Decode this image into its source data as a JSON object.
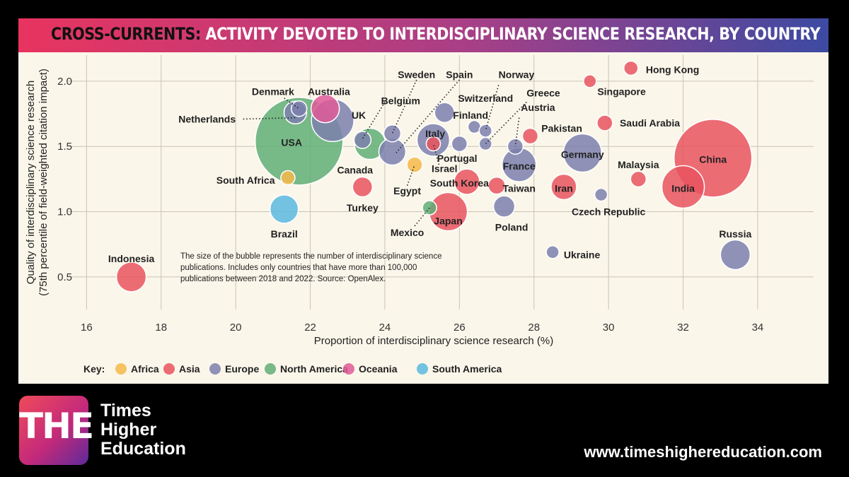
{
  "header": {
    "title_prefix": "CROSS-CURRENTS:",
    "title_rest": "ACTIVITY DEVOTED TO INTERDISCIPLINARY SCIENCE RESEARCH, BY COUNTRY"
  },
  "footer": {
    "logo_text": "THE",
    "brand_lines": [
      "Times",
      "Higher",
      "Education"
    ],
    "url": "www.timeshighereducation.com"
  },
  "colors": {
    "Africa": "#f5b84a",
    "Asia": "#e9535f",
    "Europe": "#7b80ad",
    "North America": "#5fae76",
    "Oceania": "#e05b98",
    "South America": "#5bb8e0"
  },
  "chart_data": {
    "type": "scatter",
    "title": "CROSS-CURRENTS: ACTIVITY DEVOTED TO INTERDISCIPLINARY SCIENCE RESEARCH, BY COUNTRY",
    "xlabel": "Proportion of interdisciplinary science research (%)",
    "ylabel_lines": [
      "Quality of interdisciplinary science research",
      "(75th percentile of field-weighted citation impact)"
    ],
    "xlim": [
      15.5,
      35.5
    ],
    "ylim": [
      0.25,
      2.2
    ],
    "xticks": [
      16,
      18,
      20,
      22,
      24,
      26,
      28,
      30,
      32,
      34
    ],
    "yticks": [
      0.5,
      1.0,
      1.5,
      2.0
    ],
    "ytick_labels": [
      "0.5",
      "1.0",
      "1.5",
      "2.0"
    ],
    "grid": true,
    "note_lines": [
      "The size of the bubble represents the number of interdisciplinary science",
      "publications. Includes only countries that have more than 100,000",
      "publications between 2018 and 2022. Source: OpenAlex."
    ],
    "legend": {
      "placement": "bottom-left",
      "title": "Key:",
      "entries": [
        "Africa",
        "Asia",
        "Europe",
        "North America",
        "Oceania",
        "South America"
      ]
    },
    "points": [
      {
        "country": "USA",
        "x": 21.7,
        "y": 1.54,
        "r": 62,
        "region": "North America"
      },
      {
        "country": "China",
        "x": 32.8,
        "y": 1.41,
        "r": 55,
        "region": "Asia"
      },
      {
        "country": "Germany",
        "x": 29.3,
        "y": 1.45,
        "r": 27,
        "region": "Europe"
      },
      {
        "country": "UK",
        "x": 22.6,
        "y": 1.7,
        "r": 30,
        "region": "Europe"
      },
      {
        "country": "India",
        "x": 32.0,
        "y": 1.19,
        "r": 30,
        "region": "Asia"
      },
      {
        "country": "Japan",
        "x": 25.7,
        "y": 1.0,
        "r": 27,
        "region": "Asia"
      },
      {
        "country": "France",
        "x": 27.6,
        "y": 1.36,
        "r": 24,
        "region": "Europe"
      },
      {
        "country": "Italy",
        "x": 25.3,
        "y": 1.55,
        "r": 23,
        "region": "Europe"
      },
      {
        "country": "Canada",
        "x": 23.6,
        "y": 1.52,
        "r": 22,
        "region": "North America"
      },
      {
        "country": "Spain",
        "x": 24.2,
        "y": 1.46,
        "r": 19,
        "region": "Europe"
      },
      {
        "country": "Australia",
        "x": 22.4,
        "y": 1.79,
        "r": 20,
        "region": "Oceania"
      },
      {
        "country": "Russia",
        "x": 33.4,
        "y": 0.67,
        "r": 21,
        "region": "Europe"
      },
      {
        "country": "South Korea",
        "x": 26.2,
        "y": 1.23,
        "r": 18,
        "region": "Asia"
      },
      {
        "country": "Iran",
        "x": 28.8,
        "y": 1.19,
        "r": 18,
        "region": "Asia"
      },
      {
        "country": "Brazil",
        "x": 21.3,
        "y": 1.02,
        "r": 20,
        "region": "South America"
      },
      {
        "country": "Netherlands",
        "x": 21.6,
        "y": 1.76,
        "r": 16,
        "region": "Europe"
      },
      {
        "country": "Poland",
        "x": 27.2,
        "y": 1.04,
        "r": 15,
        "region": "Europe"
      },
      {
        "country": "Switzerland",
        "x": 25.6,
        "y": 1.76,
        "r": 14,
        "region": "Europe"
      },
      {
        "country": "Turkey",
        "x": 23.4,
        "y": 1.19,
        "r": 14,
        "region": "Asia"
      },
      {
        "country": "Sweden",
        "x": 24.2,
        "y": 1.6,
        "r": 12,
        "region": "Europe"
      },
      {
        "country": "Indonesia",
        "x": 17.2,
        "y": 0.5,
        "r": 21,
        "region": "Asia"
      },
      {
        "country": "Belgium",
        "x": 23.4,
        "y": 1.55,
        "r": 12,
        "region": "Europe"
      },
      {
        "country": "Denmark",
        "x": 21.7,
        "y": 1.79,
        "r": 11,
        "region": "Europe"
      },
      {
        "country": "Taiwan",
        "x": 27.0,
        "y": 1.2,
        "r": 12,
        "region": "Asia"
      },
      {
        "country": "Austria",
        "x": 27.5,
        "y": 1.5,
        "r": 11,
        "region": "Europe"
      },
      {
        "country": "Portugal",
        "x": 26.0,
        "y": 1.52,
        "r": 11,
        "region": "Europe"
      },
      {
        "country": "Malaysia",
        "x": 30.8,
        "y": 1.25,
        "r": 11,
        "region": "Asia"
      },
      {
        "country": "Pakistan",
        "x": 27.9,
        "y": 1.58,
        "r": 11,
        "region": "Asia"
      },
      {
        "country": "Saudi Arabia",
        "x": 29.9,
        "y": 1.68,
        "r": 11,
        "region": "Asia"
      },
      {
        "country": "Egypt",
        "x": 24.8,
        "y": 1.36,
        "r": 11,
        "region": "Africa"
      },
      {
        "country": "Mexico",
        "x": 25.2,
        "y": 1.03,
        "r": 10,
        "region": "North America"
      },
      {
        "country": "Israel",
        "x": 25.3,
        "y": 1.52,
        "r": 10,
        "region": "Asia"
      },
      {
        "country": "Finland",
        "x": 26.4,
        "y": 1.65,
        "r": 9,
        "region": "Europe"
      },
      {
        "country": "Norway",
        "x": 26.7,
        "y": 1.62,
        "r": 9,
        "region": "Europe"
      },
      {
        "country": "Greece",
        "x": 26.7,
        "y": 1.52,
        "r": 9,
        "region": "Europe"
      },
      {
        "country": "Czech Republic",
        "x": 29.8,
        "y": 1.13,
        "r": 9,
        "region": "Europe"
      },
      {
        "country": "Ukraine",
        "x": 28.5,
        "y": 0.69,
        "r": 9,
        "region": "Europe"
      },
      {
        "country": "Singapore",
        "x": 29.5,
        "y": 2.0,
        "r": 9,
        "region": "Asia"
      },
      {
        "country": "Hong Kong",
        "x": 30.6,
        "y": 2.1,
        "r": 10,
        "region": "Asia"
      },
      {
        "country": "South Africa",
        "x": 21.4,
        "y": 1.26,
        "r": 10,
        "region": "Africa"
      }
    ],
    "labels": [
      {
        "text": "Hong Kong",
        "x": 31.0,
        "y": 2.09,
        "anchor": "start"
      },
      {
        "text": "Singapore",
        "x": 29.7,
        "y": 1.92,
        "anchor": "start"
      },
      {
        "text": "Saudi Arabia",
        "x": 30.3,
        "y": 1.68,
        "anchor": "start"
      },
      {
        "text": "China",
        "x": 32.8,
        "y": 1.4,
        "anchor": "middle"
      },
      {
        "text": "Malaysia",
        "x": 30.8,
        "y": 1.36,
        "anchor": "middle"
      },
      {
        "text": "India",
        "x": 32.0,
        "y": 1.18,
        "anchor": "middle"
      },
      {
        "text": "Czech Republic",
        "x": 30.0,
        "y": 1.0,
        "anchor": "middle"
      },
      {
        "text": "Russia",
        "x": 33.4,
        "y": 0.83,
        "anchor": "middle"
      },
      {
        "text": "Ukraine",
        "x": 28.8,
        "y": 0.67,
        "anchor": "start"
      },
      {
        "text": "Germany",
        "x": 29.3,
        "y": 1.44,
        "anchor": "middle"
      },
      {
        "text": "Iran",
        "x": 28.8,
        "y": 1.18,
        "anchor": "middle"
      },
      {
        "text": "Pakistan",
        "x": 28.2,
        "y": 1.64,
        "anchor": "start"
      },
      {
        "text": "Austria",
        "x": 27.65,
        "y": 1.8,
        "anchor": "start"
      },
      {
        "text": "Greece",
        "x": 27.8,
        "y": 1.91,
        "anchor": "start"
      },
      {
        "text": "Norway",
        "x": 27.05,
        "y": 2.05,
        "anchor": "start"
      },
      {
        "text": "France",
        "x": 27.6,
        "y": 1.35,
        "anchor": "middle"
      },
      {
        "text": "Taiwan",
        "x": 27.6,
        "y": 1.18,
        "anchor": "middle"
      },
      {
        "text": "Poland",
        "x": 27.4,
        "y": 0.88,
        "anchor": "middle"
      },
      {
        "text": "Finland",
        "x": 26.3,
        "y": 1.74,
        "anchor": "middle"
      },
      {
        "text": "Switzerland",
        "x": 26.7,
        "y": 1.87,
        "anchor": "middle"
      },
      {
        "text": "Spain",
        "x": 26.0,
        "y": 2.05,
        "anchor": "middle"
      },
      {
        "text": "Sweden",
        "x": 24.85,
        "y": 2.05,
        "anchor": "middle"
      },
      {
        "text": "Belgium",
        "x": 23.9,
        "y": 1.85,
        "anchor": "start"
      },
      {
        "text": "Italy",
        "x": 25.35,
        "y": 1.6,
        "anchor": "middle"
      },
      {
        "text": "Portugal",
        "x": 25.4,
        "y": 1.41,
        "anchor": "start"
      },
      {
        "text": "Israel",
        "x": 25.6,
        "y": 1.33,
        "anchor": "middle"
      },
      {
        "text": "South Korea",
        "x": 26.0,
        "y": 1.22,
        "anchor": "middle"
      },
      {
        "text": "Egypt",
        "x": 24.6,
        "y": 1.16,
        "anchor": "middle"
      },
      {
        "text": "Japan",
        "x": 25.7,
        "y": 0.93,
        "anchor": "middle"
      },
      {
        "text": "Mexico",
        "x": 24.6,
        "y": 0.84,
        "anchor": "middle"
      },
      {
        "text": "Turkey",
        "x": 23.4,
        "y": 1.03,
        "anchor": "middle"
      },
      {
        "text": "Canada",
        "x": 23.2,
        "y": 1.32,
        "anchor": "middle"
      },
      {
        "text": "UK",
        "x": 23.3,
        "y": 1.74,
        "anchor": "middle"
      },
      {
        "text": "Australia",
        "x": 22.5,
        "y": 1.92,
        "anchor": "middle"
      },
      {
        "text": "Denmark",
        "x": 21.0,
        "y": 1.92,
        "anchor": "middle"
      },
      {
        "text": "Netherlands",
        "x": 20.0,
        "y": 1.71,
        "anchor": "end"
      },
      {
        "text": "USA",
        "x": 21.5,
        "y": 1.53,
        "anchor": "middle"
      },
      {
        "text": "South Africa",
        "x": 21.05,
        "y": 1.24,
        "anchor": "end"
      },
      {
        "text": "Brazil",
        "x": 21.3,
        "y": 0.83,
        "anchor": "middle"
      },
      {
        "text": "Indonesia",
        "x": 17.2,
        "y": 0.64,
        "anchor": "middle"
      }
    ],
    "leaders": [
      {
        "from": [
          20.2,
          1.71
        ],
        "to": [
          21.6,
          1.72
        ]
      },
      {
        "from": [
          21.3,
          1.87
        ],
        "to": [
          21.7,
          1.79
        ]
      },
      {
        "from": [
          24.0,
          1.84
        ],
        "to": [
          23.4,
          1.56
        ]
      },
      {
        "from": [
          24.85,
          2.01
        ],
        "to": [
          24.2,
          1.6
        ]
      },
      {
        "from": [
          26.0,
          2.01
        ],
        "to": [
          24.3,
          1.45
        ]
      },
      {
        "from": [
          27.05,
          1.97
        ],
        "to": [
          26.7,
          1.62
        ]
      },
      {
        "from": [
          27.8,
          1.84
        ],
        "to": [
          26.7,
          1.52
        ]
      },
      {
        "from": [
          27.6,
          1.72
        ],
        "to": [
          27.5,
          1.5
        ]
      },
      {
        "from": [
          25.45,
          1.36
        ],
        "to": [
          25.3,
          1.52
        ]
      },
      {
        "from": [
          24.6,
          1.2
        ],
        "to": [
          24.8,
          1.36
        ]
      },
      {
        "from": [
          24.8,
          0.89
        ],
        "to": [
          25.2,
          1.03
        ]
      }
    ]
  }
}
